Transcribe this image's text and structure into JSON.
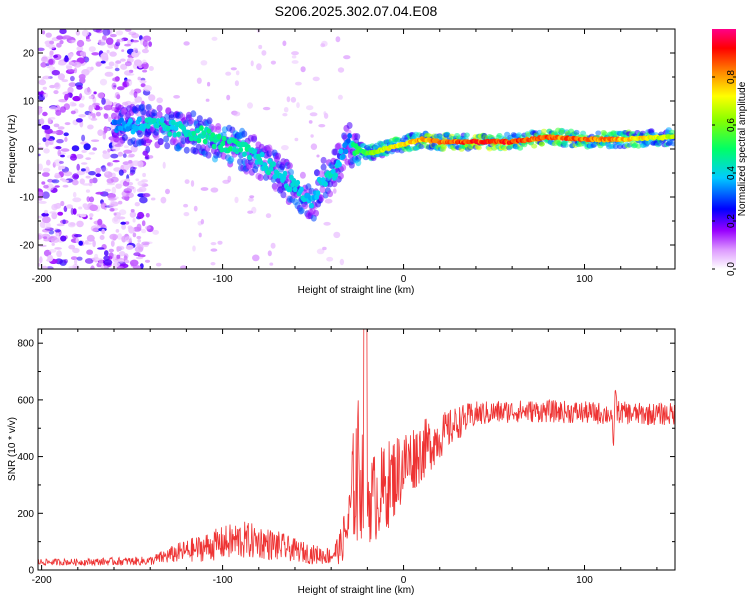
{
  "title": "S206.2025.302.07.04.E08",
  "chart_data": [
    {
      "type": "heatmap",
      "name": "spectrogram",
      "xlabel": "Height of straight line (km)",
      "ylabel": "Frequency (Hz)",
      "xlim": [
        -202,
        150
      ],
      "ylim": [
        -25,
        25
      ],
      "xticks": [
        -200,
        -100,
        0,
        100
      ],
      "xtick_labels": [
        "-200",
        "-100",
        "0",
        "100"
      ],
      "yticks": [
        20,
        10,
        0,
        -10,
        -20
      ],
      "ytick_labels": [
        "20",
        "10",
        "0",
        "-10",
        "-20"
      ],
      "colorbar": {
        "label": "Normalized spectral amplitude",
        "range": [
          0,
          1
        ],
        "ticks": [
          0.0,
          0.2,
          0.4,
          0.6,
          0.8
        ],
        "tick_labels": [
          "0.0",
          "0.2",
          "0.4",
          "0.6",
          "0.8"
        ],
        "colors": [
          "#ffffff",
          "#cc99ff",
          "#8800ff",
          "#0000ff",
          "#00ffff",
          "#00ff00",
          "#ffff00",
          "#ff8800",
          "#ff0000",
          "#ff0088"
        ]
      },
      "ridge": {
        "x": [
          -160,
          -150,
          -140,
          -125,
          -110,
          -100,
          -90,
          -80,
          -70,
          -60,
          -50,
          -45,
          -40,
          -35,
          -30,
          -28,
          -25,
          -20,
          -10,
          0,
          10,
          20,
          40,
          60,
          80,
          100,
          120,
          150
        ],
        "freq_hz": [
          5,
          5,
          5,
          4,
          3,
          1,
          0,
          -2,
          -5,
          -8,
          -11,
          -6,
          -6,
          -2,
          2,
          0,
          0,
          -1,
          0,
          1,
          2,
          1.5,
          1.5,
          1.5,
          2.5,
          2,
          2,
          2.5
        ],
        "amplitude": [
          0.35,
          0.4,
          0.45,
          0.45,
          0.5,
          0.5,
          0.5,
          0.45,
          0.45,
          0.45,
          0.4,
          0.45,
          0.45,
          0.4,
          0.35,
          0.5,
          0.55,
          0.6,
          0.75,
          0.8,
          0.85,
          0.9,
          0.95,
          0.95,
          0.9,
          0.9,
          0.85,
          0.7
        ]
      },
      "noise_region_x": [
        -202,
        -140
      ]
    },
    {
      "type": "line",
      "name": "snr",
      "xlabel": "Height of straight line (km)",
      "ylabel": "SNR (10 * v/v)",
      "xlim": [
        -202,
        150
      ],
      "ylim": [
        0,
        850
      ],
      "xticks": [
        -200,
        -100,
        0,
        100
      ],
      "xtick_labels": [
        "-200",
        "-100",
        "0",
        "100"
      ],
      "yticks": [
        0,
        200,
        400,
        600,
        800
      ],
      "ytick_labels": [
        "0",
        "200",
        "400",
        "600",
        "800"
      ],
      "color": "#ee3333",
      "series": [
        {
          "name": "SNR envelope",
          "x": [
            -202,
            -180,
            -160,
            -140,
            -125,
            -110,
            -100,
            -90,
            -80,
            -70,
            -60,
            -50,
            -40,
            -35,
            -30,
            -28,
            -26,
            -24,
            -22,
            -20,
            -15,
            -10,
            -5,
            0,
            10,
            20,
            30,
            40,
            60,
            80,
            100,
            115,
            116,
            117,
            118,
            120,
            130,
            150
          ],
          "mean": [
            28,
            28,
            30,
            32,
            60,
            80,
            95,
            105,
            100,
            85,
            70,
            55,
            50,
            80,
            170,
            300,
            330,
            350,
            300,
            250,
            260,
            290,
            330,
            370,
            420,
            470,
            520,
            550,
            560,
            560,
            555,
            550,
            420,
            650,
            560,
            555,
            550,
            550
          ],
          "noise_amp": [
            12,
            12,
            14,
            16,
            35,
            50,
            60,
            70,
            60,
            55,
            40,
            35,
            30,
            60,
            120,
            180,
            300,
            250,
            200,
            160,
            160,
            160,
            150,
            130,
            110,
            80,
            60,
            45,
            40,
            40,
            40,
            40,
            0,
            0,
            40,
            40,
            40,
            40
          ]
        }
      ],
      "annotations": [
        {
          "x": -21,
          "y": 850,
          "text": ""
        }
      ]
    }
  ]
}
